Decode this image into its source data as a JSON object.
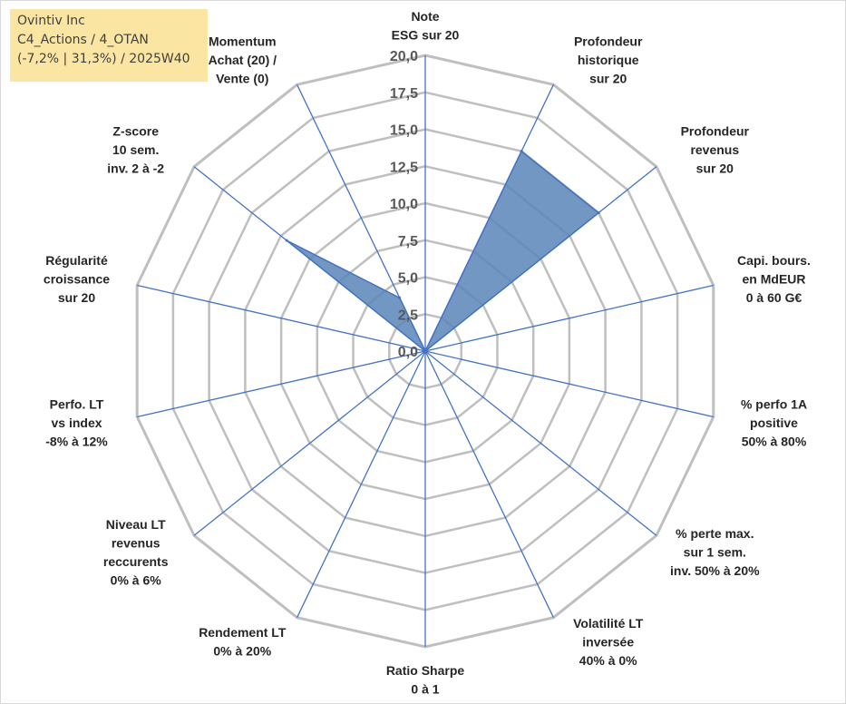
{
  "header": {
    "company": "Ovintiv Inc",
    "portfolio": "C4_Actions / 4_OTAN",
    "stats": "(-7,2% | 31,3%) / 2025W40"
  },
  "colors": {
    "fill": "#5b85b8",
    "stroke": "#4472c4",
    "grid": "#bfbfbf"
  },
  "chart_data": {
    "type": "radar",
    "rmax": 20,
    "ticks": [
      "0,0",
      "2,5",
      "5,0",
      "7,5",
      "10,0",
      "12,5",
      "15,0",
      "17,5",
      "20,0"
    ],
    "axes": [
      {
        "label": [
          "Note",
          "ESG sur 20"
        ],
        "value": 0
      },
      {
        "label": [
          "Profondeur",
          "historique",
          "sur 20"
        ],
        "value": 15
      },
      {
        "label": [
          "Profondeur",
          "revenus",
          "sur 20"
        ],
        "value": 15
      },
      {
        "label": [
          "Capi. bours.",
          "en MdEUR",
          "0 à 60 G€"
        ],
        "value": 0
      },
      {
        "label": [
          "% perfo 1A",
          "positive",
          "50% à 80%"
        ],
        "value": 0
      },
      {
        "label": [
          "% perte max.",
          "sur 1 sem.",
          "inv. 50% à 20%"
        ],
        "value": 0
      },
      {
        "label": [
          "Volatilité LT",
          "inversée",
          "40% à 0%"
        ],
        "value": 0
      },
      {
        "label": [
          "Ratio Sharpe",
          "0 à 1"
        ],
        "value": 0
      },
      {
        "label": [
          "Rendement LT",
          "0% à 20%"
        ],
        "value": 0
      },
      {
        "label": [
          "Niveau LT",
          "revenus",
          "reccurents",
          "0% à 6%"
        ],
        "value": 0
      },
      {
        "label": [
          "Perfo. LT",
          "vs index",
          "-8% à 12%"
        ],
        "value": 0
      },
      {
        "label": [
          "Régularité",
          "croissance",
          "sur 20"
        ],
        "value": 0
      },
      {
        "label": [
          "Z-score",
          "10 sem.",
          "inv. 2 à -2"
        ],
        "value": 12
      },
      {
        "label": [
          "Momentum",
          "Achat (20) /",
          "Vente (0)"
        ],
        "value": 4
      }
    ]
  }
}
